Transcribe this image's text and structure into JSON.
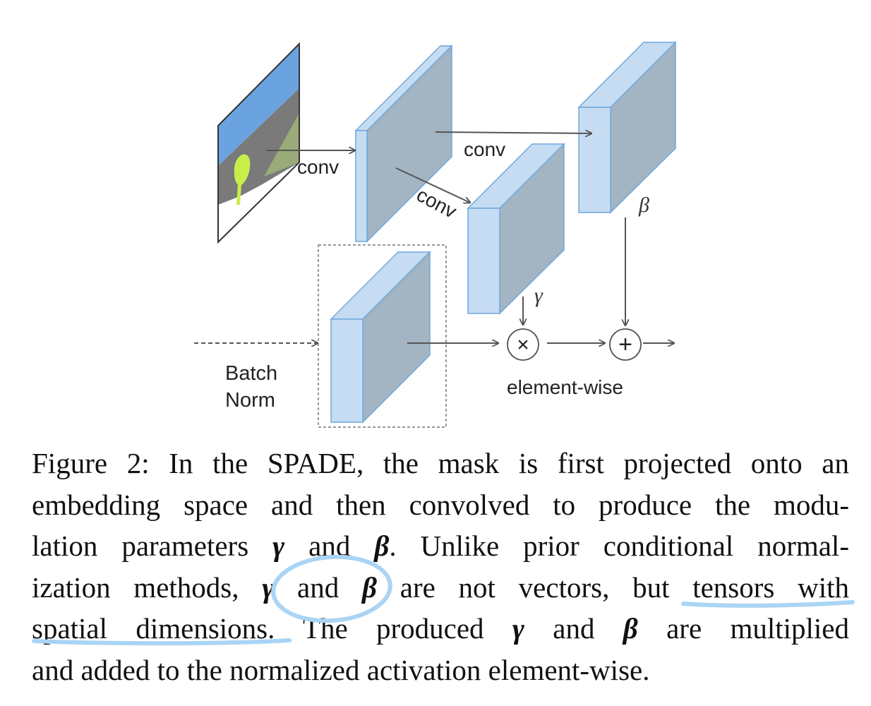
{
  "figure": {
    "labels": {
      "conv_top": "conv",
      "conv_left": "conv",
      "conv_diag": "conv",
      "beta": "β",
      "gamma": "γ",
      "batch_norm_line1": "Batch",
      "batch_norm_line2": "Norm",
      "elementwise": "element-wise",
      "multiply": "×",
      "add": "+"
    },
    "colors": {
      "front_face": "#c6dcf2",
      "side_face": "#a3b4c3",
      "edge": "#6fa8dc",
      "arrow": "#555555",
      "sky": "#6aa3e0",
      "ground": "#7a7a7a",
      "grass": "#9aaa78",
      "tree": "#c8ee4a",
      "highlight": "#a9d4f5"
    }
  },
  "caption": {
    "l1": "Figure 2: In the SPADE, the mask is first projected onto an",
    "l2": "embedding space and then convolved to produce the modu-",
    "l3_a": "lation parameters ",
    "l3_g": "γ",
    "l3_b": " and ",
    "l3_beta": "β",
    "l3_c": ". Unlike prior conditional normal-",
    "l4_a": "ization methods, ",
    "l4_g": "γ",
    "l4_b": " and ",
    "l4_beta": "β",
    "l4_c": " are not vectors, but tensors with",
    "l5_a": "spatial dimensions. The produced ",
    "l5_g": "γ",
    "l5_b": " and ",
    "l5_beta": "β",
    "l5_c": " are multiplied",
    "l6": "and added to the normalized activation element-wise."
  }
}
